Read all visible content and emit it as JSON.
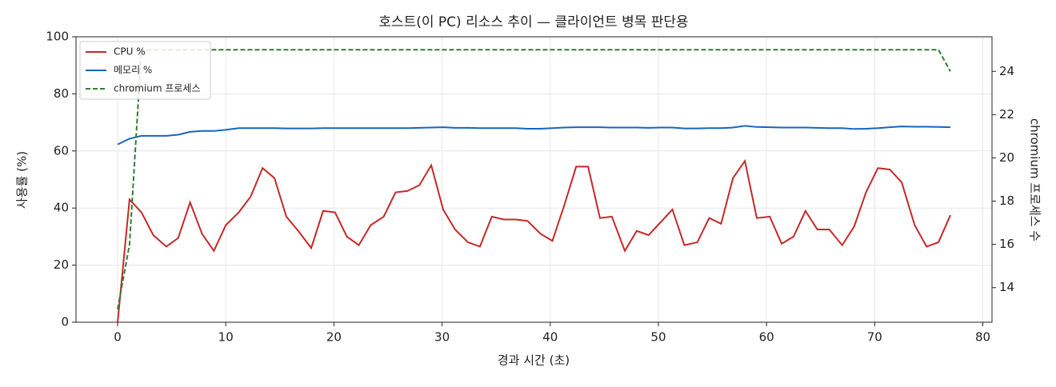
{
  "chart_data": {
    "type": "line",
    "title": "호스트(이 PC) 리소스 추이 — 클라이언트 병목 판단용",
    "xlabel": "경과 시간 (초)",
    "ylabel": "사용률 (%)",
    "y2label": "chromium 프로세스 수",
    "x": [
      0,
      1.1,
      2.2,
      3.3,
      4.5,
      5.6,
      6.7,
      7.8,
      8.9,
      10,
      11.2,
      12.3,
      13.4,
      14.5,
      15.6,
      16.7,
      17.9,
      19,
      20.1,
      21.2,
      22.3,
      23.4,
      24.6,
      25.7,
      26.8,
      27.9,
      29,
      30.1,
      31.2,
      32.4,
      33.5,
      34.6,
      35.7,
      36.8,
      37.9,
      39.1,
      40.2,
      41.3,
      42.4,
      43.5,
      44.6,
      45.7,
      46.9,
      48,
      49.1,
      50.2,
      51.3,
      52.4,
      53.6,
      54.7,
      55.8,
      56.9,
      58,
      59.1,
      60.3,
      61.4,
      62.5,
      63.6,
      64.7,
      65.8,
      67,
      68.1,
      69.2,
      70.3,
      71.4,
      72.5,
      73.7,
      74.8,
      75.9,
      77
    ],
    "series": [
      {
        "name": "CPU %",
        "color": "#c62828",
        "dash": false,
        "values": [
          0,
          43,
          38.5,
          30.5,
          26.5,
          29.5,
          42,
          31,
          25,
          34,
          38.5,
          44,
          54,
          50.5,
          37,
          32,
          26,
          39,
          38.5,
          30,
          27,
          34,
          37,
          45.5,
          46,
          48,
          55,
          39.5,
          32.5,
          28,
          26.5,
          37,
          36,
          36,
          35.5,
          31,
          28.5,
          41,
          54.5,
          54.5,
          36.5,
          37,
          25,
          32,
          30.5,
          35,
          39.5,
          27,
          28,
          36.5,
          34.5,
          50.5,
          56.5,
          36.5,
          37,
          27.5,
          30,
          39,
          32.5,
          32.5,
          27,
          33.5,
          45.5,
          54,
          53.5,
          49,
          34,
          26.5,
          28,
          37.5
        ]
      },
      {
        "name": "메모리 %",
        "color": "#1565c0",
        "dash": false,
        "values": [
          62.3,
          64.3,
          65.3,
          65.3,
          65.3,
          65.7,
          66.7,
          67,
          67,
          67.4,
          68,
          68,
          68,
          68,
          67.9,
          67.9,
          67.9,
          68,
          68,
          68,
          68,
          68,
          68,
          68,
          68,
          68.1,
          68.2,
          68.3,
          68.1,
          68.1,
          68,
          68,
          68,
          68,
          67.8,
          67.8,
          68,
          68.2,
          68.3,
          68.3,
          68.3,
          68.2,
          68.2,
          68.2,
          68.1,
          68.2,
          68.2,
          67.9,
          67.9,
          68,
          68,
          68.2,
          68.8,
          68.4,
          68.3,
          68.2,
          68.2,
          68.2,
          68.1,
          68,
          68,
          67.7,
          67.8,
          68,
          68.3,
          68.6,
          68.5,
          68.5,
          68.4,
          68.3
        ]
      },
      {
        "name": "chromium 프로세스",
        "color": "#2e7d32",
        "dash": true,
        "axis": "y2",
        "values": [
          13,
          16,
          25,
          25,
          25,
          25,
          25,
          25,
          25,
          25,
          25,
          25,
          25,
          25,
          25,
          25,
          25,
          25,
          25,
          25,
          25,
          25,
          25,
          25,
          25,
          25,
          25,
          25,
          25,
          25,
          25,
          25,
          25,
          25,
          25,
          25,
          25,
          25,
          25,
          25,
          25,
          25,
          25,
          25,
          25,
          25,
          25,
          25,
          25,
          25,
          25,
          25,
          25,
          25,
          25,
          25,
          25,
          25,
          25,
          25,
          25,
          25,
          25,
          25,
          25,
          25,
          25,
          25,
          25,
          24
        ]
      }
    ],
    "xlim": [
      -3.85,
      80.85
    ],
    "xticks": [
      0,
      10,
      20,
      30,
      40,
      50,
      60,
      70,
      80
    ],
    "ylim": [
      0,
      100
    ],
    "yticks": [
      0,
      20,
      40,
      60,
      80,
      100
    ],
    "y2lim": [
      12.4,
      25.6
    ],
    "y2ticks": [
      14,
      16,
      18,
      20,
      22,
      24
    ],
    "grid": true,
    "legend": "upper-left"
  }
}
